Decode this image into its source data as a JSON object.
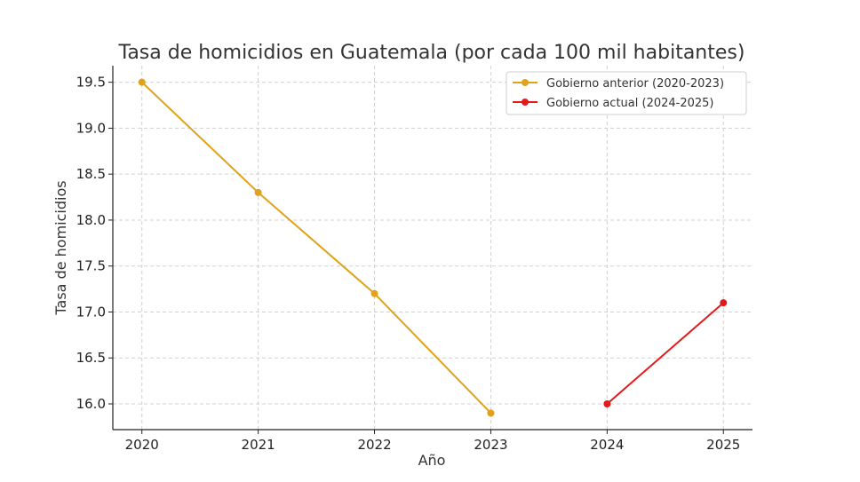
{
  "chart_data": {
    "type": "line",
    "title": "Tasa de homicidios en Guatemala (por cada 100 mil habitantes)",
    "xlabel": "Año",
    "ylabel": "Tasa de homicidios",
    "xlim": [
      2019.75,
      2025.25
    ],
    "ylim": [
      15.72,
      19.68
    ],
    "x_ticks": [
      "2020",
      "2021",
      "2022",
      "2023",
      "2024",
      "2025"
    ],
    "y_ticks": [
      "16.0",
      "16.5",
      "17.0",
      "17.5",
      "18.0",
      "18.5",
      "19.0",
      "19.5"
    ],
    "grid": true,
    "legend_position": "top-right",
    "series": [
      {
        "name": "Gobierno anterior (2020-2023)",
        "color": "#e1a21b",
        "x": [
          2020,
          2021,
          2022,
          2023
        ],
        "values": [
          19.5,
          18.3,
          17.2,
          15.9
        ]
      },
      {
        "name": "Gobierno actual (2024-2025)",
        "color": "#e31a1c",
        "x": [
          2024,
          2025
        ],
        "values": [
          16.0,
          17.1
        ]
      }
    ]
  }
}
